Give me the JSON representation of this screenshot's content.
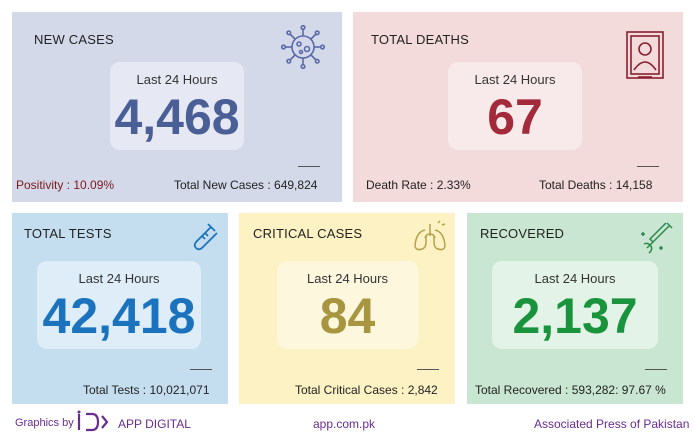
{
  "colors": {
    "new_cases_bg": "#d4d9ea",
    "deaths_bg": "#f3dadb",
    "tests_bg": "#c4def0",
    "critical_bg": "#fcf2c3",
    "recovered_bg": "#c9e6d2",
    "new_cases_num": "#4a5f96",
    "deaths_num": "#a22a3a",
    "tests_num": "#1c73bd",
    "critical_num": "#a8953f",
    "recovered_num": "#19943d",
    "footer_purple": "#6a2c91",
    "positivity_red": "#7a1a1a"
  },
  "new_cases": {
    "title": "NEW CASES",
    "period_label": "Last 24 Hours",
    "value": "4,468",
    "positivity": "Positivity : 10.09%",
    "total": "Total New Cases : 649,824",
    "icon": "virus-icon"
  },
  "total_deaths": {
    "title": "TOTAL DEATHS",
    "period_label": "Last 24 Hours",
    "value": "67",
    "death_rate": "Death Rate : 2.33%",
    "total": "Total Deaths : 14,158",
    "icon": "portrait-frame-icon"
  },
  "total_tests": {
    "title": "TOTAL TESTS",
    "period_label": "Last 24 Hours",
    "value": "42,418",
    "total": "Total Tests : 10,021,071",
    "icon": "test-tube-icon"
  },
  "critical_cases": {
    "title": "CRITICAL CASES",
    "period_label": "Last 24 Hours",
    "value": "84",
    "total": "Total Critical Cases : 2,842",
    "icon": "lungs-icon"
  },
  "recovered": {
    "title": "RECOVERED",
    "period_label": "Last 24 Hours",
    "value": "2,137",
    "total": "Total Recovered : 593,282: 97.67 %",
    "icon": "syringe-hand-icon"
  },
  "footer": {
    "graphics_by": "Graphics by",
    "brand": "APP DIGITAL",
    "website": "app.com.pk",
    "agency": "Associated Press of Pakistan"
  }
}
